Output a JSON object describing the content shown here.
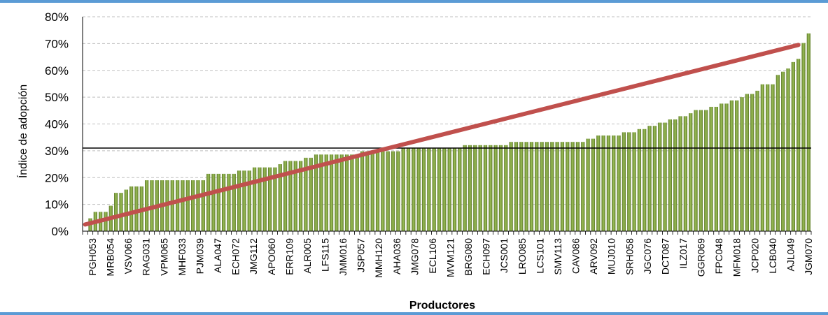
{
  "chart_data": {
    "type": "bar",
    "title": "",
    "xlabel": "Productores",
    "ylabel": "Índice de adopción",
    "ylim": [
      0,
      0.8
    ],
    "yticks": [
      "0%",
      "10%",
      "20%",
      "30%",
      "40%",
      "50%",
      "60%",
      "70%",
      "80%"
    ],
    "grid": "horizontal dashed",
    "x_tick_labels": [
      "PGH053",
      "MRB054",
      "VSV066",
      "RAG031",
      "VPM065",
      "MHF033",
      "PJM039",
      "ALA047",
      "ECH072",
      "JMG112",
      "APO060",
      "ERR109",
      "ALR005",
      "LFS115",
      "JMM016",
      "JSP057",
      "MMH120",
      "AHA036",
      "JMG078",
      "ECL106",
      "MVM121",
      "BRG080",
      "ECH097",
      "JCS001",
      "LRO085",
      "LCS101",
      "SMV113",
      "CAV086",
      "ARV092",
      "MUJ010",
      "SRH058",
      "JGC076",
      "DCT087",
      "ILZ017",
      "GGR069",
      "FPC048",
      "MFM018",
      "JCP020",
      "LCB040",
      "AJL049",
      "JGM070"
    ],
    "series": [
      {
        "type": "bar",
        "color": "#7a9a3c",
        "values": [
          0,
          0.048,
          0.072,
          0.072,
          0.072,
          0.095,
          0.143,
          0.143,
          0.155,
          0.167,
          0.167,
          0.167,
          0.19,
          0.19,
          0.19,
          0.19,
          0.19,
          0.19,
          0.19,
          0.19,
          0.19,
          0.19,
          0.19,
          0.19,
          0.214,
          0.214,
          0.214,
          0.214,
          0.214,
          0.214,
          0.226,
          0.226,
          0.226,
          0.238,
          0.238,
          0.238,
          0.238,
          0.238,
          0.25,
          0.262,
          0.262,
          0.262,
          0.262,
          0.274,
          0.274,
          0.286,
          0.286,
          0.286,
          0.286,
          0.286,
          0.286,
          0.286,
          0.286,
          0.286,
          0.298,
          0.298,
          0.298,
          0.298,
          0.298,
          0.298,
          0.298,
          0.298,
          0.31,
          0.31,
          0.31,
          0.31,
          0.31,
          0.31,
          0.31,
          0.31,
          0.31,
          0.31,
          0.31,
          0.31,
          0.321,
          0.321,
          0.321,
          0.321,
          0.321,
          0.321,
          0.321,
          0.321,
          0.321,
          0.333,
          0.333,
          0.333,
          0.333,
          0.333,
          0.333,
          0.333,
          0.333,
          0.333,
          0.333,
          0.333,
          0.333,
          0.333,
          0.333,
          0.333,
          0.345,
          0.345,
          0.357,
          0.357,
          0.357,
          0.357,
          0.357,
          0.369,
          0.369,
          0.369,
          0.381,
          0.381,
          0.393,
          0.393,
          0.405,
          0.405,
          0.417,
          0.417,
          0.429,
          0.429,
          0.44,
          0.452,
          0.452,
          0.452,
          0.464,
          0.464,
          0.476,
          0.476,
          0.488,
          0.488,
          0.5,
          0.512,
          0.512,
          0.524,
          0.548,
          0.548,
          0.548,
          0.583,
          0.595,
          0.607,
          0.631,
          0.643,
          0.702,
          0.738
        ]
      },
      {
        "type": "line",
        "color": "#c0504d",
        "x": [
          1,
          140
        ],
        "values": [
          0.025,
          0.695
        ]
      },
      {
        "type": "hline",
        "color": "#000000",
        "value": 0.31
      }
    ]
  }
}
